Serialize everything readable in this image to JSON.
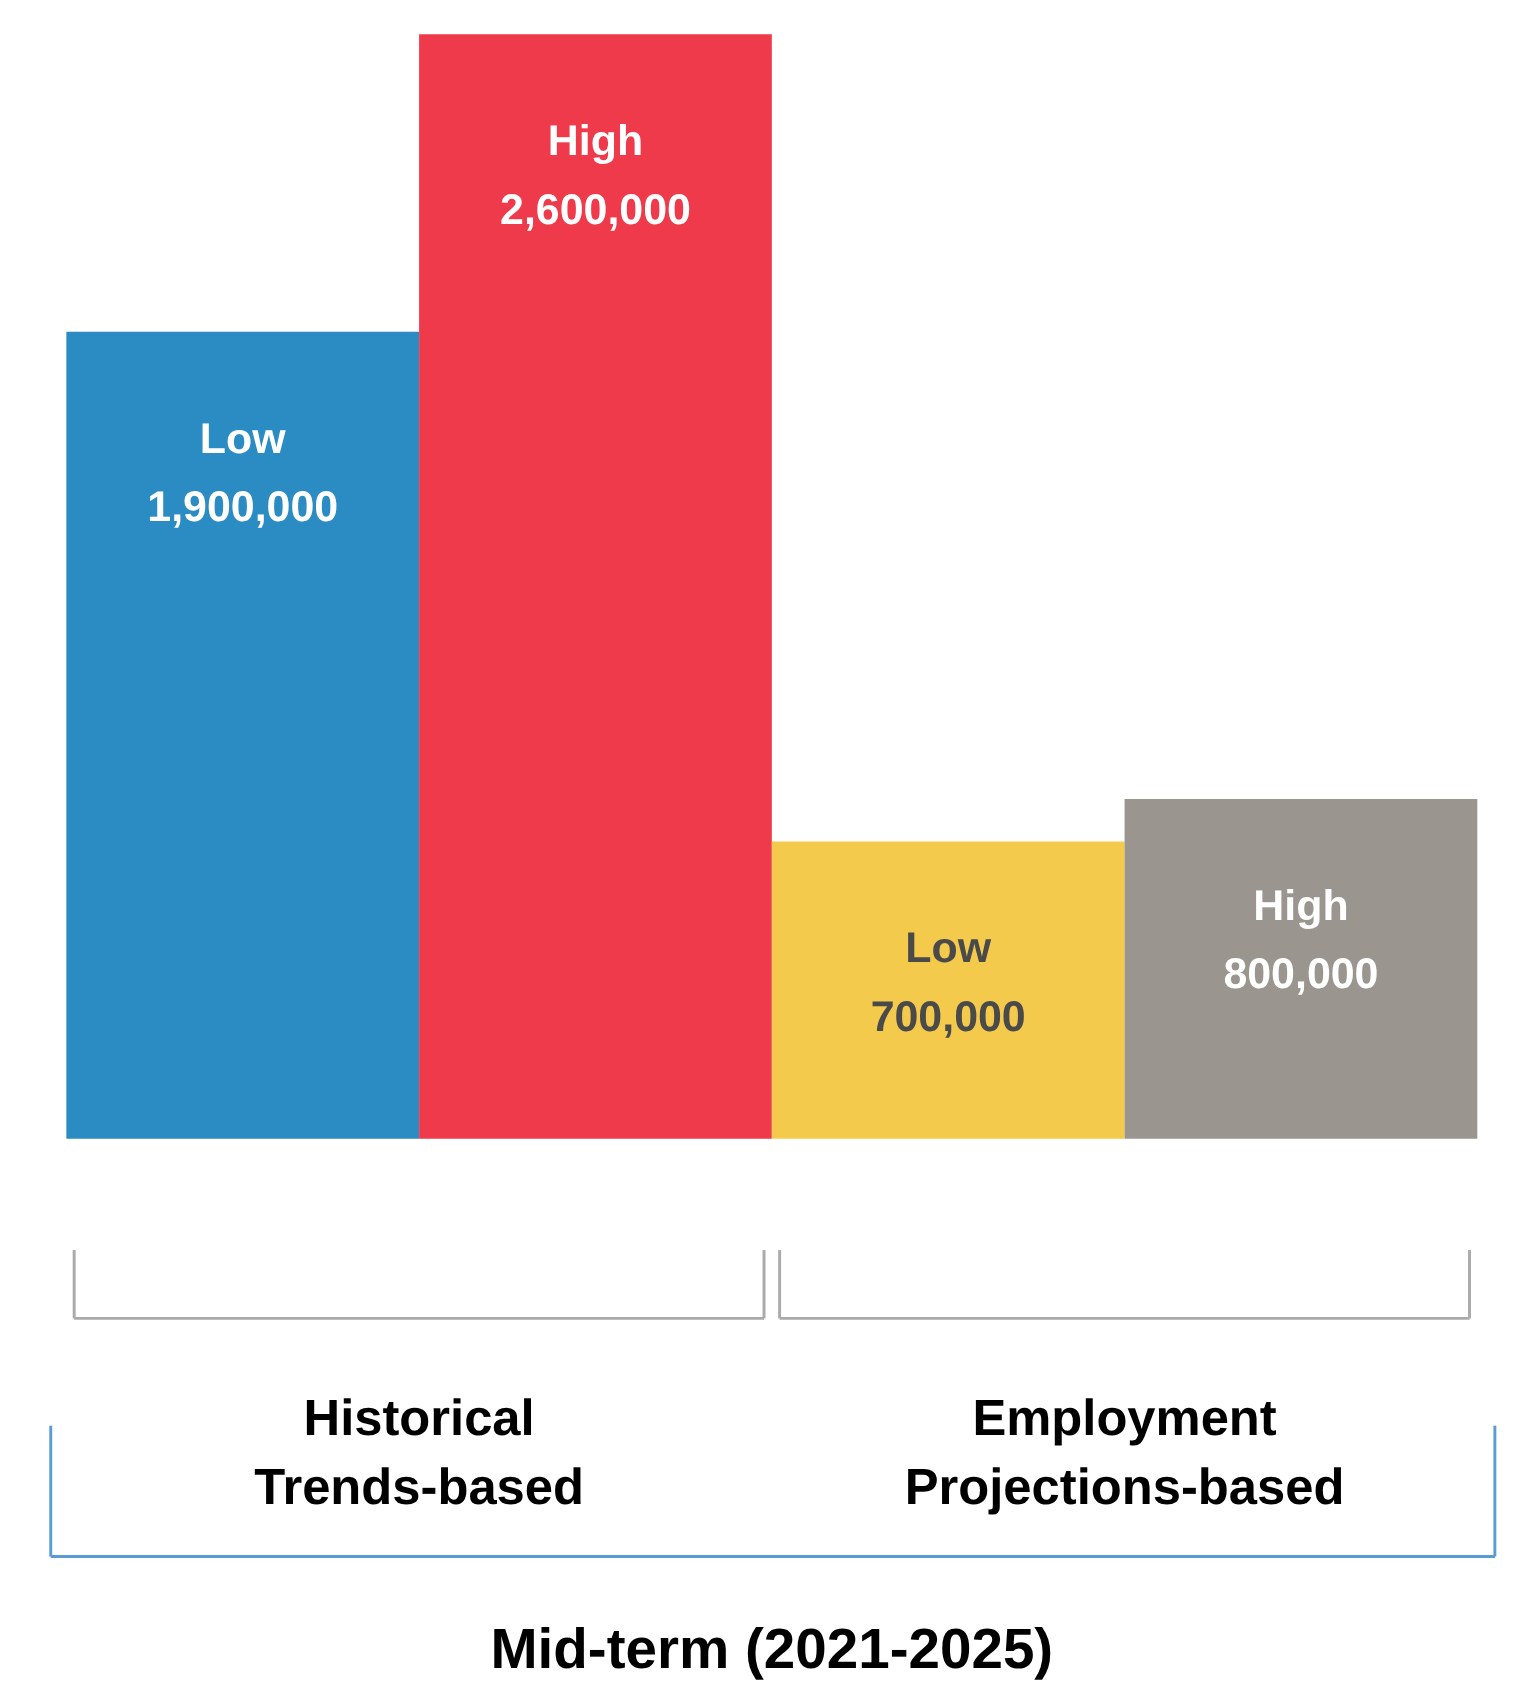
{
  "chart_data": {
    "type": "bar",
    "categories": [
      "Low",
      "High",
      "Low",
      "High"
    ],
    "values": [
      1900000,
      2600000,
      700000,
      800000
    ],
    "colors": [
      "#2b8bc3",
      "#ee3a4a",
      "#f4ca4c",
      "#9a958e"
    ],
    "value_labels": [
      "1,900,000",
      "2,600,000",
      "700,000",
      "800,000"
    ],
    "annotations": [
      "Historical\nTrends-based",
      "Employment\nProjections-based",
      "Mid-term (2021-2025)"
    ]
  }
}
